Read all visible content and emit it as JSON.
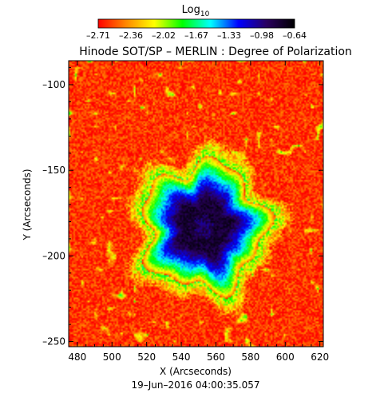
{
  "chart_data": {
    "type": "heatmap",
    "title": "Hinode SOT/SP – MERLIN : Degree of Polarization",
    "subtitle": "19–Jun–2016 04:00:35.057",
    "xlabel": "X (Arcseconds)",
    "ylabel": "Y (Arcseconds)",
    "xlim": [
      475,
      622
    ],
    "ylim": [
      -253,
      -86
    ],
    "xticks": [
      480,
      500,
      520,
      540,
      560,
      580,
      600,
      620
    ],
    "yticks": [
      -100,
      -150,
      -200,
      -250
    ],
    "xtick_labels": [
      "480",
      "500",
      "520",
      "540",
      "560",
      "580",
      "600",
      "620"
    ],
    "ytick_labels": [
      "–100",
      "–150",
      "–200",
      "–250"
    ],
    "colorbar": {
      "label": "Log",
      "label_sub": "10",
      "range": [
        -2.71,
        -0.64
      ],
      "tick_labels": [
        "–2.71",
        "–2.36",
        "–2.02",
        "–1.67",
        "–1.33",
        "–0.98",
        "–0.64"
      ],
      "colormap": [
        "#ff0000",
        "#ff8800",
        "#ffff00",
        "#00ff00",
        "#00ffff",
        "#0000ff",
        "#2a0060",
        "#000000"
      ]
    },
    "features": {
      "sunspot_center": [
        553,
        -183
      ],
      "umbra_radius": 14,
      "penumbra_radius": 35,
      "log_dop_quiet_sun": -2.6,
      "log_dop_umbra": -0.8
    }
  }
}
